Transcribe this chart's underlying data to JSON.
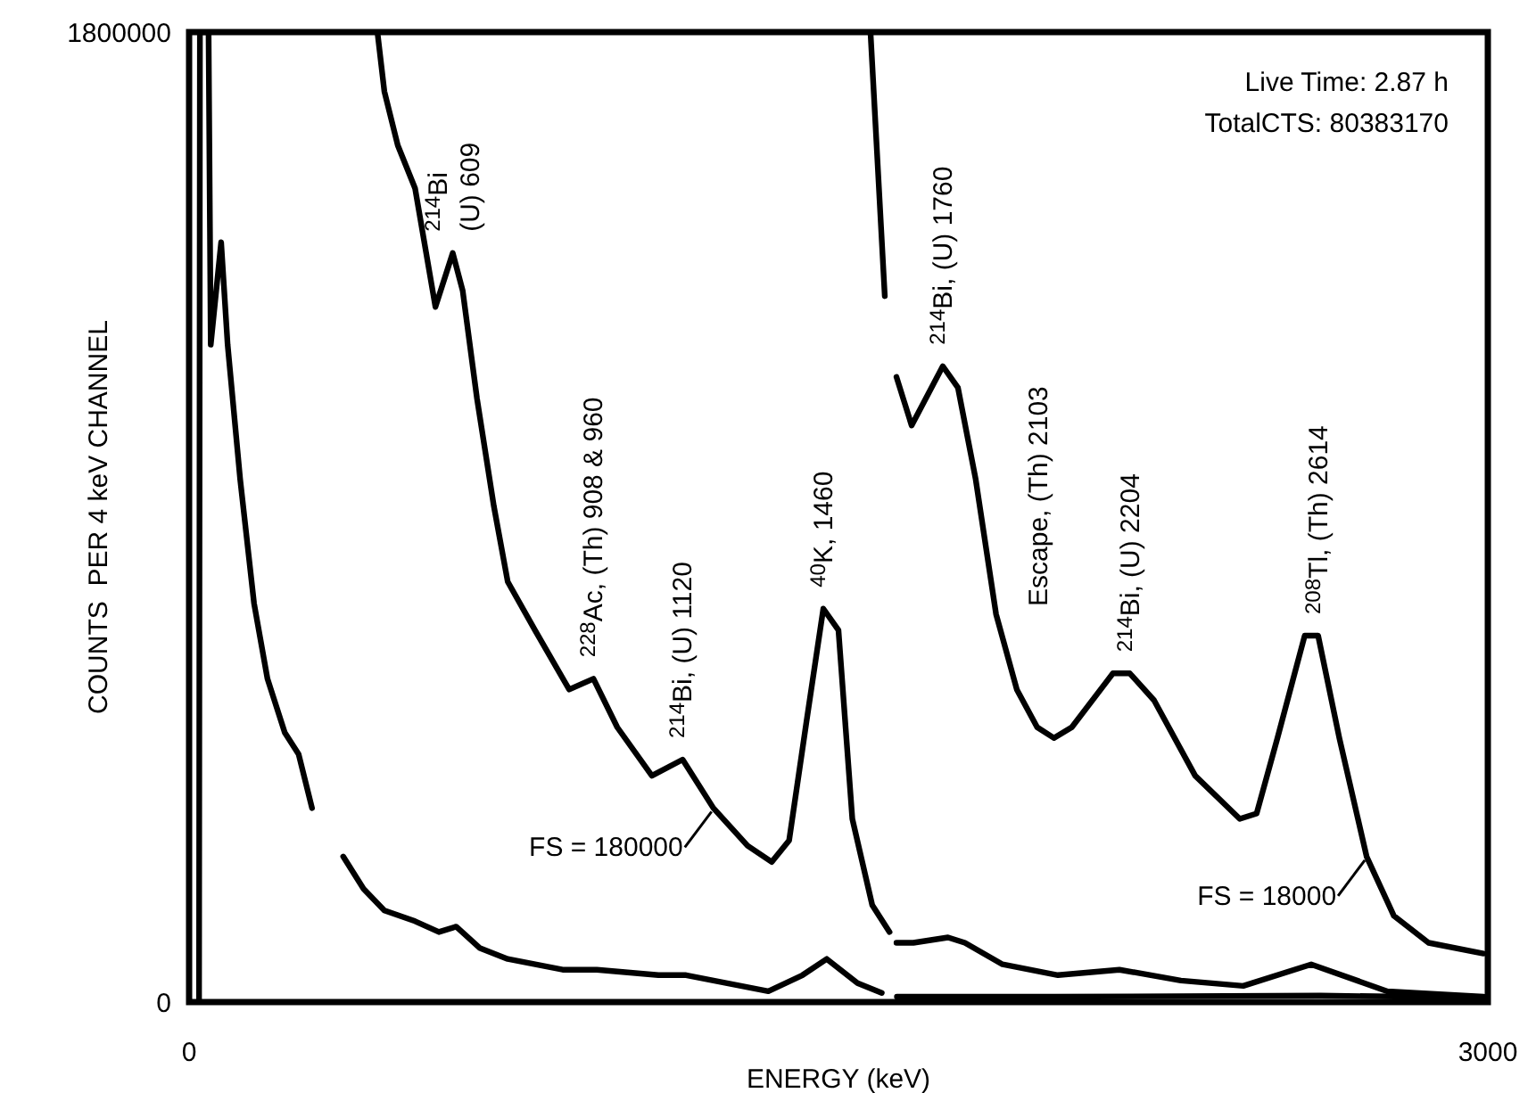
{
  "chart_data": {
    "type": "line",
    "xlabel": "ENERGY (keV)",
    "ylabel": "COUNTS  PER 4 keV CHANNEL",
    "xlim": [
      0,
      3000
    ],
    "xticks": [
      0,
      3000
    ],
    "ylim": [
      0,
      1800000
    ],
    "yticks": [
      0,
      1800000
    ],
    "legend": "bottom",
    "marker": "none",
    "line_style": "solid",
    "series": [
      {
        "color": "#000000",
        "x": [
          23,
          25,
          45,
          50,
          74,
          89,
          118,
          150,
          181,
          221,
          253,
          284,
          300,
          356,
          403,
          451,
          522,
          577,
          617,
          672,
          736,
          863,
          942,
          1084,
          1148,
          1338,
          1417,
          1473,
          1544,
          1600,
          1620,
          1635,
          2000,
          2614,
          2990
        ],
        "values": [
          0,
          1800000,
          1800000,
          1220000,
          1410000,
          1220000,
          970000,
          740000,
          600000,
          500000,
          460000,
          360000,
          null,
          270000,
          210000,
          170000,
          150000,
          130000,
          140000,
          100000,
          80000,
          60000,
          60000,
          50000,
          50000,
          20000,
          50000,
          80000,
          35000,
          17000,
          null,
          10000,
          10000,
          12000,
          8000
        ]
      },
      {
        "name": "FS = 180000",
        "color": "#000000",
        "x": [
          435,
          451,
          482,
          522,
          569,
          609,
          632,
          665,
          704,
          736,
          799,
          878,
          934,
          989,
          1069,
          1140,
          1211,
          1290,
          1346,
          1386,
          1426,
          1465,
          1500,
          1532,
          1578,
          1618,
          1625,
          1634,
          1673,
          1753,
          1792,
          1879,
          2007,
          2149,
          2291,
          2435,
          2592,
          2768,
          2990
        ],
        "values": [
          1800000,
          1690000,
          1590000,
          1510000,
          1290000,
          1390000,
          1320000,
          1120000,
          920000,
          780000,
          690000,
          580000,
          600000,
          510000,
          420000,
          450000,
          360000,
          290000,
          260000,
          300000,
          520000,
          730000,
          690000,
          340000,
          180000,
          130000,
          null,
          110000,
          110000,
          120000,
          110000,
          70000,
          50000,
          60000,
          40000,
          30000,
          70000,
          20000,
          10000
        ]
      },
      {
        "name": "FS = 18000",
        "color": "#000000",
        "x": [
          1574,
          1607,
          1620,
          1634,
          1669,
          1741,
          1776,
          1817,
          1864,
          1912,
          1959,
          1998,
          2039,
          2134,
          2173,
          2229,
          2324,
          2427,
          2466,
          2514,
          2577,
          2608,
          2657,
          2720,
          2783,
          2863,
          2990
        ],
        "values": [
          1800000,
          1310000,
          null,
          1160000,
          1070000,
          1180000,
          1140000,
          970000,
          720000,
          580000,
          510000,
          490000,
          510000,
          610000,
          610000,
          560000,
          420000,
          340000,
          350000,
          490000,
          680000,
          680000,
          490000,
          270000,
          160000,
          110000,
          90000
        ]
      }
    ],
    "annotations": [
      "Live Time:  2.87 h",
      "TotalCTS:  80383170",
      {
        "text": "$^{214}$Bi\n(U) 609",
        "x": 609,
        "y": 1390000
      },
      {
        "text": "$^{228}$Ac, (Th) 908 & 960",
        "x": 934,
        "y": 600000
      },
      {
        "text": "$^{214}$Bi, (U) 1120",
        "x": 1140,
        "y": 450000
      },
      {
        "text": "$^{40}$K, 1460",
        "x": 1465,
        "y": 730000
      },
      {
        "text": "$^{214}$Bi, (U) 1760",
        "x": 1741,
        "y": 1180000
      },
      "Escape, (Th) 2103",
      {
        "text": "$^{214}$Bi, (U) 2204",
        "x": 2173,
        "y": 610000
      },
      {
        "text": "$^{208}$Tl,  (Th) 2614",
        "x": 2608,
        "y": 680000
      }
    ]
  }
}
